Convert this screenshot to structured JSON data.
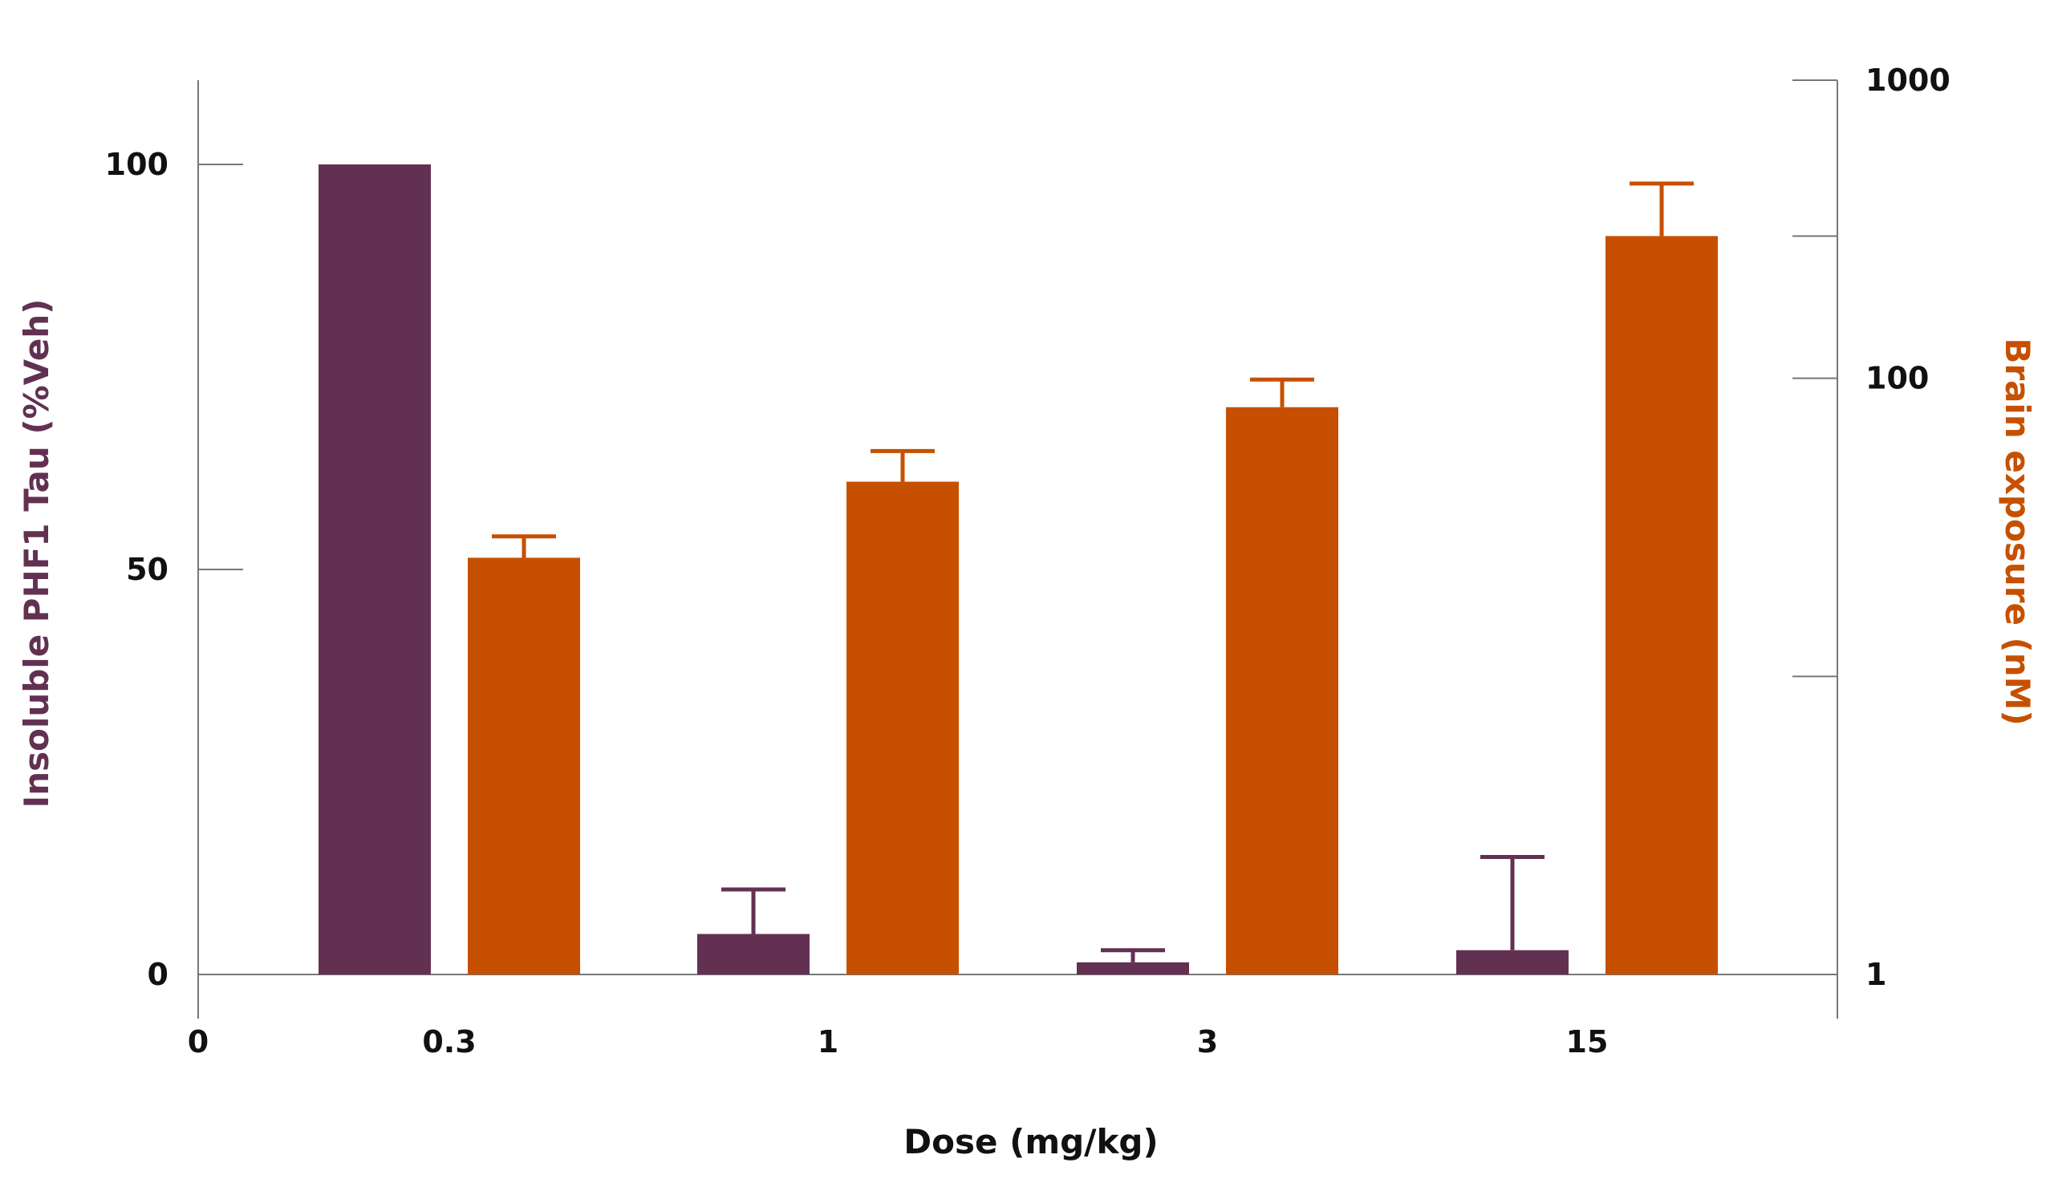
{
  "chart_data": {
    "type": "bar",
    "xlabel": "Dose (mg/kg)",
    "x_origin_label": "0",
    "categories": [
      "0.3",
      "1",
      "3",
      "15"
    ],
    "left_axis": {
      "label": "Insoluble PHF1 Tau (%Veh)",
      "ylim": [
        0,
        110
      ],
      "ticks": [
        0,
        50,
        100
      ],
      "tick_labels": [
        "0",
        "50",
        "100"
      ]
    },
    "right_axis": {
      "label": "Brain exposure (nM)",
      "scale": "log",
      "ylim": [
        1,
        1000
      ],
      "ticks": [
        1,
        100,
        1000
      ],
      "tick_labels": [
        "1",
        "100",
        "1000"
      ],
      "minor_ticks": [
        10,
        300
      ]
    },
    "series": [
      {
        "axis": "left",
        "color": "#623152",
        "values": [
          100,
          5,
          1.5,
          3
        ],
        "error_plus": [
          0,
          5.5,
          1.5,
          11.5
        ]
      },
      {
        "axis": "right",
        "color": "#c65000",
        "values": [
          25,
          45,
          80,
          300
        ],
        "error_plus": [
          4.5,
          12,
          19,
          150
        ]
      }
    ],
    "axis_color": "#777777",
    "grid": false
  }
}
